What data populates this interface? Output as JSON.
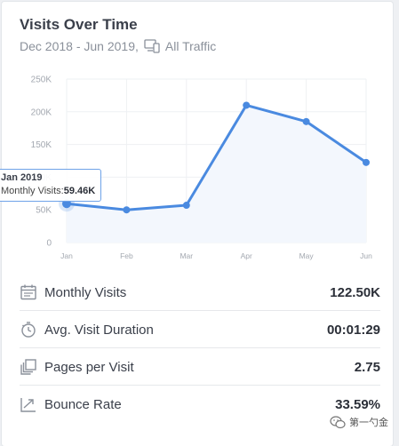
{
  "card": {
    "title": "Visits Over Time",
    "date_range": "Dec 2018 - Jun 2019,",
    "traffic": "All Traffic"
  },
  "chart_data": {
    "type": "area",
    "title": "",
    "xlabel": "",
    "ylabel": "",
    "categories": [
      "Jan",
      "Feb",
      "Mar",
      "Apr",
      "May",
      "Jun"
    ],
    "series": [
      {
        "values": [
          59460,
          50000,
          57000,
          210000,
          185000,
          122500
        ]
      }
    ],
    "ylim": [
      0,
      250000
    ],
    "yticks": [
      0,
      50000,
      100000,
      150000,
      200000,
      250000
    ],
    "ytick_labels": [
      "0",
      "50K",
      "100K",
      "150K",
      "200K",
      "250K"
    ],
    "grid": true,
    "line_color": "#4a8ae0",
    "fill_color": "#f3f7fd",
    "highlight_index": 0
  },
  "tooltip": {
    "date": "Jan 2019",
    "label": "Monthly Visits:",
    "value": "59.46K"
  },
  "metrics": [
    {
      "icon": "calendar-icon",
      "label": "Monthly Visits",
      "value": "122.50K"
    },
    {
      "icon": "stopwatch-icon",
      "label": "Avg. Visit Duration",
      "value": "00:01:29"
    },
    {
      "icon": "pages-icon",
      "label": "Pages per Visit",
      "value": "2.75"
    },
    {
      "icon": "bounce-icon",
      "label": "Bounce Rate",
      "value": "33.59%"
    }
  ],
  "watermark": {
    "text": "第一勺金",
    "icon": "wechat-icon"
  },
  "colors": {
    "accent": "#4a8ae0",
    "icon_gray": "#8a909a"
  }
}
